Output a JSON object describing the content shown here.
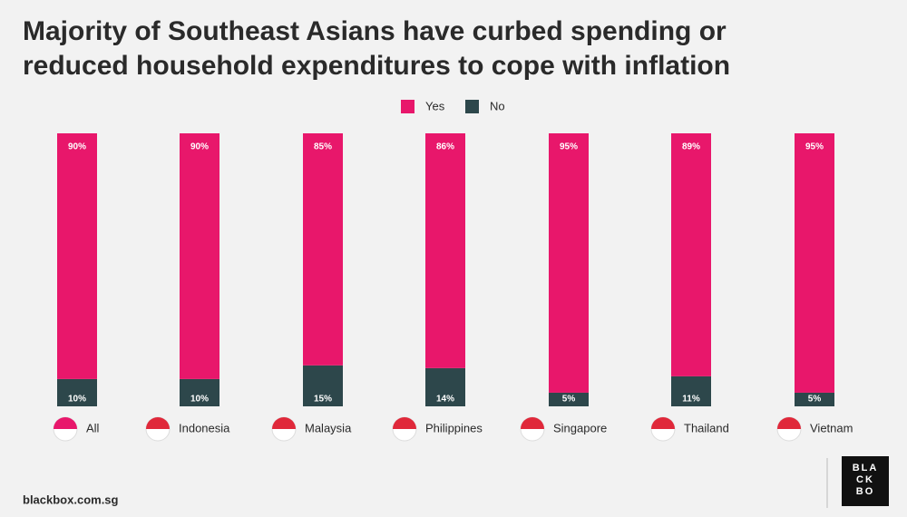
{
  "chart_data": {
    "type": "stacked_bar",
    "title": "Majority of Southeast Asians have curbed spending or\nreduced household expenditures to cope with inflation",
    "categories": [
      "All",
      "Indonesia",
      "Malaysia",
      "Philippines",
      "Singapore",
      "Thailand",
      "Vietnam"
    ],
    "series": [
      {
        "name": "Yes",
        "color": "#e8176b",
        "values": [
          90,
          90,
          85,
          86,
          95,
          89,
          95
        ],
        "value_labels": [
          "90%",
          "90%",
          "85%",
          "86%",
          "95%",
          "89%",
          "95%"
        ]
      },
      {
        "name": "No",
        "color": "#2d474b",
        "values": [
          10,
          10,
          15,
          14,
          5,
          11,
          5
        ],
        "value_labels": [
          "10%",
          "10%",
          "15%",
          "14%",
          "5%",
          "11%",
          "5%"
        ]
      }
    ],
    "source": "blackbox.com.sg",
    "logo": [
      "BLA",
      "CK",
      "BO"
    ]
  }
}
